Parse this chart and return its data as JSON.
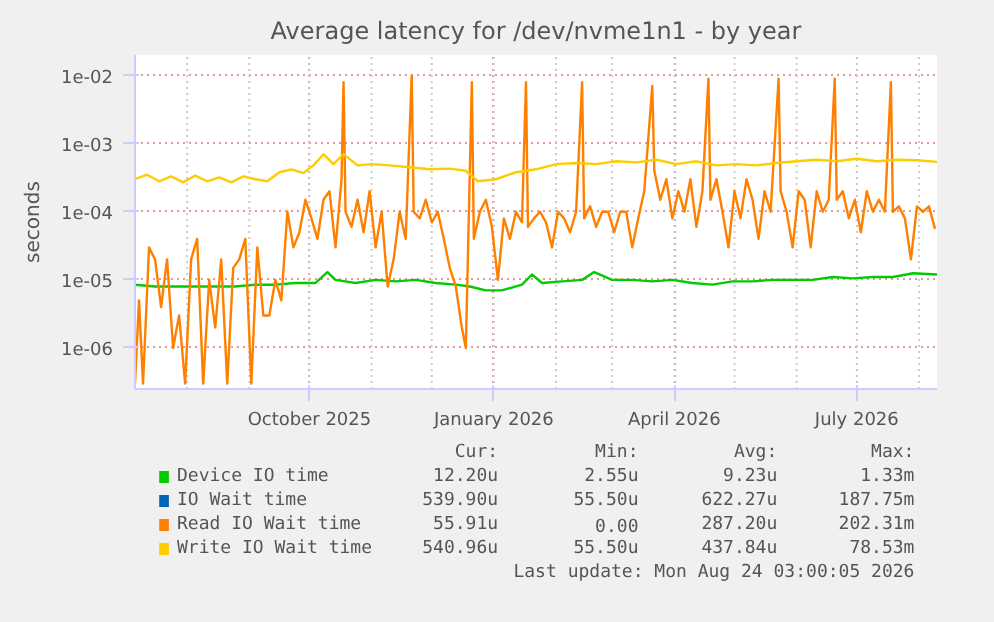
{
  "chart_data": {
    "type": "line",
    "title": "Average latency for /dev/nvme1n1 - by year",
    "ylabel": "seconds",
    "log": "y",
    "grid": true,
    "legend": "bottom",
    "xlim": [
      "2025-07-06",
      "2026-08-10"
    ],
    "xticks": [
      {
        "value": "2025-10-01",
        "label": "October 2025"
      },
      {
        "value": "2026-01-01",
        "label": "January 2026"
      },
      {
        "value": "2026-04-01",
        "label": "April 2026"
      },
      {
        "value": "2026-07-01",
        "label": "July 2026"
      }
    ],
    "ylim": [
      2.5e-07,
      0.02
    ],
    "yticks": [
      {
        "value": 1e-06,
        "label": "1e-06"
      },
      {
        "value": 1e-05,
        "label": "1e-05"
      },
      {
        "value": 0.0001,
        "label": "1e-04"
      },
      {
        "value": 0.001,
        "label": "1e-03"
      },
      {
        "value": 0.01,
        "label": "1e-02"
      }
    ],
    "series": [
      {
        "name": "Device IO time",
        "color": "#00cc00",
        "x": [
          "2025-07-06",
          "2025-07-16",
          "2025-07-26",
          "2025-08-05",
          "2025-08-15",
          "2025-08-25",
          "2025-09-04",
          "2025-09-14",
          "2025-09-24",
          "2025-10-04",
          "2025-10-10",
          "2025-10-14",
          "2025-10-24",
          "2025-11-03",
          "2025-11-13",
          "2025-11-23",
          "2025-12-03",
          "2025-12-13",
          "2025-12-20",
          "2025-12-28",
          "2026-01-05",
          "2026-01-15",
          "2026-01-20",
          "2026-01-25",
          "2026-02-04",
          "2026-02-14",
          "2026-02-20",
          "2026-03-01",
          "2026-03-11",
          "2026-03-21",
          "2026-03-31",
          "2026-04-10",
          "2026-04-20",
          "2026-04-30",
          "2026-05-10",
          "2026-05-20",
          "2026-05-30",
          "2026-06-09",
          "2026-06-19",
          "2026-06-29",
          "2026-07-09",
          "2026-07-19",
          "2026-07-29",
          "2026-08-10"
        ],
        "values": [
          8.5e-06,
          8e-06,
          8e-06,
          8e-06,
          8e-06,
          8e-06,
          8.5e-06,
          8.5e-06,
          9e-06,
          9e-06,
          1.3e-05,
          1e-05,
          9e-06,
          1e-05,
          9.5e-06,
          1e-05,
          9e-06,
          8.5e-06,
          8e-06,
          7e-06,
          7e-06,
          8.5e-06,
          1.2e-05,
          9e-06,
          9.5e-06,
          1e-05,
          1.3e-05,
          1e-05,
          1e-05,
          9.5e-06,
          1e-05,
          9e-06,
          8.5e-06,
          9.5e-06,
          9.5e-06,
          1e-05,
          1e-05,
          1e-05,
          1.1e-05,
          1.05e-05,
          1.1e-05,
          1.1e-05,
          1.25e-05,
          1.2e-05
        ]
      },
      {
        "name": "IO Wait time",
        "color": "#0066b3",
        "values": [
          null,
          null
        ]
      },
      {
        "name": "Read IO Wait time",
        "color": "#ff8000",
        "x": [
          "2025-07-06",
          "2025-07-08",
          "2025-07-10",
          "2025-07-13",
          "2025-07-16",
          "2025-07-19",
          "2025-07-22",
          "2025-07-25",
          "2025-07-28",
          "2025-07-31",
          "2025-08-03",
          "2025-08-06",
          "2025-08-09",
          "2025-08-12",
          "2025-08-15",
          "2025-08-18",
          "2025-08-21",
          "2025-08-24",
          "2025-08-27",
          "2025-08-30",
          "2025-09-02",
          "2025-09-05",
          "2025-09-08",
          "2025-09-11",
          "2025-09-14",
          "2025-09-17",
          "2025-09-20",
          "2025-09-23",
          "2025-09-26",
          "2025-09-29",
          "2025-10-02",
          "2025-10-05",
          "2025-10-08",
          "2025-10-11",
          "2025-10-14",
          "2025-10-17",
          "2025-10-18",
          "2025-10-19",
          "2025-10-22",
          "2025-10-25",
          "2025-10-28",
          "2025-10-31",
          "2025-11-03",
          "2025-11-06",
          "2025-11-09",
          "2025-11-12",
          "2025-11-15",
          "2025-11-18",
          "2025-11-21",
          "2025-11-22",
          "2025-11-25",
          "2025-11-28",
          "2025-12-01",
          "2025-12-04",
          "2025-12-07",
          "2025-12-10",
          "2025-12-13",
          "2025-12-16",
          "2025-12-18",
          "2025-12-21",
          "2025-12-22",
          "2025-12-25",
          "2025-12-28",
          "2025-12-31",
          "2026-01-03",
          "2026-01-06",
          "2026-01-09",
          "2026-01-12",
          "2026-01-15",
          "2026-01-17",
          "2026-01-18",
          "2026-01-21",
          "2026-01-24",
          "2026-01-27",
          "2026-01-30",
          "2026-02-02",
          "2026-02-05",
          "2026-02-08",
          "2026-02-11",
          "2026-02-14",
          "2026-02-15",
          "2026-02-18",
          "2026-02-21",
          "2026-02-24",
          "2026-02-27",
          "2026-03-02",
          "2026-03-05",
          "2026-03-08",
          "2026-03-11",
          "2026-03-14",
          "2026-03-17",
          "2026-03-21",
          "2026-03-22",
          "2026-03-25",
          "2026-03-28",
          "2026-03-31",
          "2026-04-03",
          "2026-04-06",
          "2026-04-09",
          "2026-04-12",
          "2026-04-15",
          "2026-04-18",
          "2026-04-19",
          "2026-04-22",
          "2026-04-25",
          "2026-04-28",
          "2026-05-01",
          "2026-05-04",
          "2026-05-07",
          "2026-05-10",
          "2026-05-13",
          "2026-05-16",
          "2026-05-19",
          "2026-05-23",
          "2026-05-24",
          "2026-05-27",
          "2026-05-30",
          "2026-06-02",
          "2026-06-05",
          "2026-06-08",
          "2026-06-11",
          "2026-06-14",
          "2026-06-17",
          "2026-06-20",
          "2026-06-21",
          "2026-06-24",
          "2026-06-27",
          "2026-06-30",
          "2026-07-03",
          "2026-07-06",
          "2026-07-09",
          "2026-07-12",
          "2026-07-15",
          "2026-07-18",
          "2026-07-19",
          "2026-07-22",
          "2026-07-25",
          "2026-07-28",
          "2026-07-31",
          "2026-08-03",
          "2026-08-06",
          "2026-08-09"
        ],
        "values": [
          3e-07,
          5e-06,
          3e-07,
          3e-05,
          2e-05,
          4e-06,
          2e-05,
          1e-06,
          3e-06,
          3e-07,
          2e-05,
          4e-05,
          3e-07,
          1e-05,
          2e-06,
          2e-05,
          3e-07,
          1.5e-05,
          2e-05,
          4e-05,
          3e-07,
          3e-05,
          3e-06,
          3e-06,
          1e-05,
          5e-06,
          0.0001,
          3e-05,
          5e-05,
          0.00015,
          8e-05,
          4e-05,
          0.00015,
          0.0002,
          3e-05,
          0.0003,
          0.008,
          0.0001,
          6e-05,
          0.00015,
          5e-05,
          0.0002,
          3e-05,
          0.0001,
          8e-06,
          2e-05,
          0.0001,
          4e-05,
          0.01,
          0.0001,
          8e-05,
          0.00015,
          7e-05,
          0.0001,
          4e-05,
          1.5e-05,
          8e-06,
          2e-06,
          1e-06,
          0.008,
          4e-05,
          0.0001,
          0.00015,
          6e-05,
          1e-05,
          8e-05,
          4e-05,
          0.0001,
          7e-05,
          0.008,
          6e-05,
          8e-05,
          0.0001,
          7e-05,
          3e-05,
          0.0001,
          8e-05,
          5e-05,
          0.0001,
          0.008,
          8e-05,
          0.00012,
          6e-05,
          0.0001,
          0.0001,
          5e-05,
          0.0001,
          0.0001,
          3e-05,
          8e-05,
          0.0002,
          0.007,
          0.0004,
          0.00015,
          0.0003,
          8e-05,
          0.0002,
          0.0001,
          0.0003,
          6e-05,
          0.0002,
          0.009,
          0.00015,
          0.0003,
          0.0001,
          3e-05,
          0.0002,
          8e-05,
          0.0003,
          0.00015,
          4e-05,
          0.0002,
          0.0001,
          0.009,
          0.0002,
          0.0001,
          3e-05,
          0.0002,
          0.00015,
          3e-05,
          0.0002,
          0.0001,
          0.00015,
          0.009,
          0.00015,
          0.0002,
          8e-05,
          0.00015,
          5e-05,
          0.0002,
          0.0001,
          0.00015,
          0.0001,
          0.008,
          0.0001,
          0.00012,
          8e-05,
          2e-05,
          0.00012,
          0.0001,
          0.00012,
          5.6e-05
        ]
      },
      {
        "name": "Write IO Wait time",
        "color": "#ffcc00",
        "x": [
          "2025-07-06",
          "2025-07-12",
          "2025-07-18",
          "2025-07-24",
          "2025-07-30",
          "2025-08-05",
          "2025-08-11",
          "2025-08-17",
          "2025-08-23",
          "2025-08-29",
          "2025-09-04",
          "2025-09-10",
          "2025-09-16",
          "2025-09-22",
          "2025-09-28",
          "2025-10-03",
          "2025-10-08",
          "2025-10-13",
          "2025-10-18",
          "2025-10-25",
          "2025-11-01",
          "2025-11-10",
          "2025-11-20",
          "2025-11-30",
          "2025-12-10",
          "2025-12-18",
          "2025-12-24",
          "2026-01-02",
          "2026-01-12",
          "2026-01-22",
          "2026-02-01",
          "2026-02-11",
          "2026-02-21",
          "2026-03-03",
          "2026-03-13",
          "2026-03-23",
          "2026-04-02",
          "2026-04-12",
          "2026-04-22",
          "2026-05-02",
          "2026-05-12",
          "2026-05-22",
          "2026-06-01",
          "2026-06-11",
          "2026-06-21",
          "2026-07-01",
          "2026-07-11",
          "2026-07-21",
          "2026-07-31",
          "2026-08-10"
        ],
        "values": [
          0.0003,
          0.00035,
          0.00028,
          0.00033,
          0.00027,
          0.00034,
          0.00028,
          0.00032,
          0.00027,
          0.00033,
          0.0003,
          0.00028,
          0.00038,
          0.00042,
          0.00037,
          0.00048,
          0.0007,
          0.0005,
          0.0007,
          0.00048,
          0.0005,
          0.00048,
          0.00045,
          0.00042,
          0.00043,
          0.0004,
          0.00028,
          0.0003,
          0.00038,
          0.00042,
          0.0005,
          0.00052,
          0.0005,
          0.00055,
          0.00053,
          0.00058,
          0.0005,
          0.00055,
          0.00048,
          0.0005,
          0.00048,
          0.00052,
          0.00055,
          0.00058,
          0.00055,
          0.0006,
          0.00055,
          0.00058,
          0.00057,
          0.00054
        ]
      }
    ],
    "annotations": [
      "Cur:",
      "Min:",
      "Avg:",
      "Max:",
      "12.20u",
      "2.55u",
      "9.23u",
      "1.33m",
      "539.90u",
      "55.50u",
      "622.27u",
      "187.75m",
      "55.91u",
      "0.00",
      "287.20u",
      "202.31m",
      "540.96u",
      "55.50u",
      "437.84u",
      "78.53m",
      "Last update: Mon Aug 24 03:00:05 2026"
    ]
  }
}
